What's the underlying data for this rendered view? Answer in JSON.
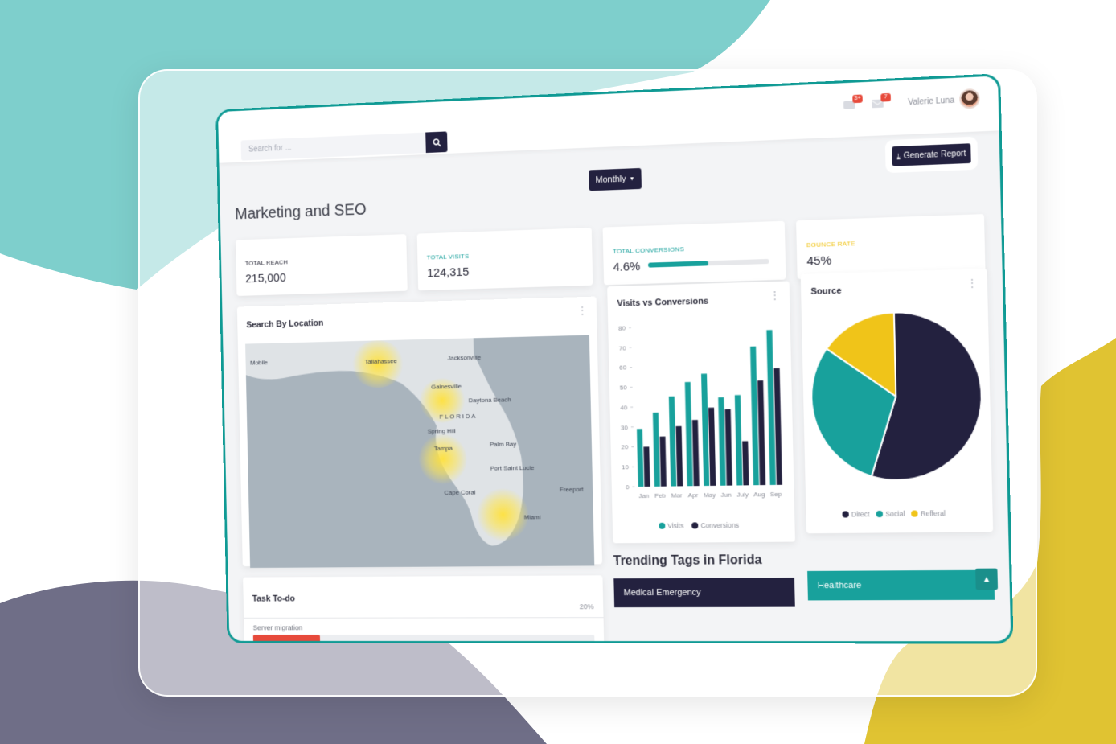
{
  "search": {
    "placeholder": "Search for ..."
  },
  "notifications": {
    "alerts_count": "3+",
    "messages_count": "7"
  },
  "user": {
    "name": "Valerie Luna"
  },
  "page": {
    "title": "Marketing and SEO"
  },
  "controls": {
    "period_label": "Monthly",
    "generate_label": "Generate Report"
  },
  "stats": [
    {
      "label": "TOTAL REACH",
      "value": "215,000",
      "color": "#2b2b3a"
    },
    {
      "label": "TOTAL VISITS",
      "value": "124,315",
      "color": "#18a19c"
    },
    {
      "label": "TOTAL CONVERSIONS",
      "value": "4.6%",
      "color": "#18a19c",
      "progress": 0.5
    },
    {
      "label": "BOUNCE RATE",
      "value": "45%",
      "color": "#f0c419"
    }
  ],
  "map": {
    "title": "Search By Location",
    "cities": [
      "Mobile",
      "Tallahassee",
      "Jacksonville",
      "Gainesville",
      "Daytona Beach",
      "FLORIDA",
      "Spring Hill",
      "Tampa",
      "Palm Bay",
      "Port Saint Lucie",
      "Cape Coral",
      "Miami",
      "Freeport"
    ]
  },
  "chart_data": [
    {
      "type": "bar",
      "title": "Visits vs Conversions",
      "categories": [
        "Jan",
        "Feb",
        "Mar",
        "Apr",
        "May",
        "Jun",
        "July",
        "Aug",
        "Sep"
      ],
      "series": [
        {
          "name": "Visits",
          "color": "#18a19c",
          "values": [
            29,
            37,
            45,
            52,
            56,
            44,
            45,
            69,
            77
          ]
        },
        {
          "name": "Conversions",
          "color": "#23213f",
          "values": [
            20,
            25,
            30,
            33,
            39,
            38,
            22,
            52,
            58
          ]
        }
      ],
      "ylim": [
        0,
        80
      ],
      "yticks": [
        0,
        10,
        20,
        30,
        40,
        50,
        60,
        70,
        80
      ],
      "legend": "bottom"
    },
    {
      "type": "pie",
      "title": "Source",
      "slices": [
        {
          "name": "Direct",
          "value": 55,
          "color": "#23213f"
        },
        {
          "name": "Social",
          "value": 30,
          "color": "#18a19c"
        },
        {
          "name": "Refferal",
          "value": 15,
          "color": "#f0c419"
        }
      ],
      "legend": "bottom"
    }
  ],
  "tasks": {
    "title": "Task To-do",
    "items": [
      {
        "name": "Server migration",
        "percent_label": "20%",
        "progress": 0.2,
        "color": "#e74a3b"
      }
    ]
  },
  "trending": {
    "title": "Trending Tags in Florida",
    "tags": [
      {
        "label": "Medical Emergency",
        "color": "#23213f"
      },
      {
        "label": "Healthcare",
        "color": "#18a19c"
      }
    ]
  }
}
